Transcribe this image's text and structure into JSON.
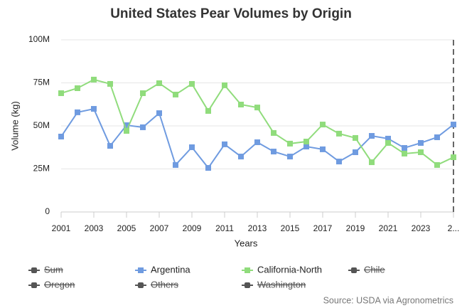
{
  "chart_data": {
    "type": "line",
    "title": "United States Pear Volumes by Origin",
    "x_label": "Years",
    "y_label": "Volume (kg)",
    "source": "Source: USDA via Agronometrics",
    "x": [
      2001,
      2002,
      2003,
      2004,
      2005,
      2006,
      2007,
      2008,
      2009,
      2010,
      2011,
      2012,
      2013,
      2014,
      2015,
      2016,
      2017,
      2018,
      2019,
      2020,
      2021,
      2022,
      2023,
      2024,
      2025
    ],
    "xlim": [
      2001,
      2025
    ],
    "xticks": [
      2001,
      2003,
      2005,
      2007,
      2009,
      2011,
      2013,
      2015,
      2017,
      2019,
      2021,
      2023,
      {
        "value": 2025,
        "label": "2..."
      }
    ],
    "ylim": [
      0,
      100000000
    ],
    "yticks": [
      0,
      {
        "value": 25000000,
        "label": "25M"
      },
      {
        "value": 50000000,
        "label": "50M"
      },
      {
        "value": 75000000,
        "label": "75M"
      },
      {
        "value": 100000000,
        "label": "100M"
      }
    ],
    "grid": true,
    "vline": 2025,
    "series": [
      {
        "name": "Sum",
        "visible": false
      },
      {
        "name": "Argentina",
        "color": "#6f9be0",
        "values": [
          43800000,
          57900000,
          59900000,
          38400000,
          50400000,
          49200000,
          57400000,
          27300000,
          37600000,
          25600000,
          39300000,
          32200000,
          40500000,
          35100000,
          32200000,
          38000000,
          36400000,
          29300000,
          34700000,
          44200000,
          42600000,
          37200000,
          40100000,
          43400000,
          50800000
        ]
      },
      {
        "name": "California-North",
        "color": "#90dc7c",
        "values": [
          69000000,
          71900000,
          76900000,
          74400000,
          47100000,
          69000000,
          74800000,
          68200000,
          74400000,
          58700000,
          73600000,
          62400000,
          60700000,
          45900000,
          39700000,
          40900000,
          50800000,
          45500000,
          43000000,
          28900000,
          40100000,
          33900000,
          34700000,
          27300000,
          31800000
        ]
      },
      {
        "name": "Chile",
        "visible": false
      },
      {
        "name": "Oregon",
        "visible": false
      },
      {
        "name": "Others",
        "visible": false
      },
      {
        "name": "Washington",
        "visible": false
      }
    ]
  }
}
